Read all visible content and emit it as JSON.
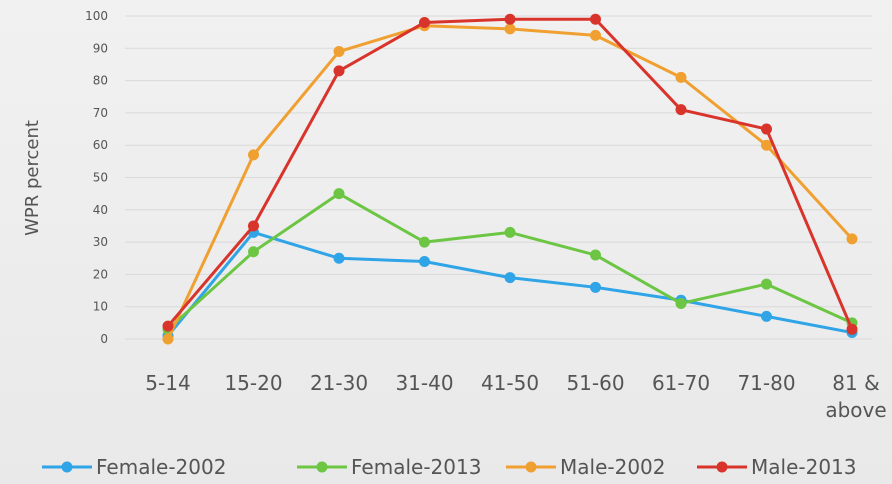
{
  "chart_data": {
    "type": "line",
    "title": "",
    "xlabel": "",
    "ylabel": "WPR percent",
    "ylim": [
      0,
      100
    ],
    "yticks": [
      0,
      10,
      20,
      30,
      40,
      50,
      60,
      70,
      80,
      90,
      100
    ],
    "categories": [
      "5-14",
      "15-20",
      "21-30",
      "31-40",
      "41-50",
      "51-60",
      "61-70",
      "71-80",
      "81 & above"
    ],
    "grid": true,
    "legend_position": "bottom",
    "series": [
      {
        "name": "Female-2002",
        "color": "#2fa4e7",
        "values": [
          1,
          33,
          25,
          24,
          19,
          16,
          12,
          7,
          2
        ]
      },
      {
        "name": "Female-2013",
        "color": "#6cc644",
        "values": [
          3,
          27,
          45,
          30,
          33,
          26,
          11,
          17,
          5
        ]
      },
      {
        "name": "Male-2002",
        "color": "#f0a030",
        "values": [
          0,
          57,
          89,
          97,
          96,
          94,
          81,
          60,
          31
        ]
      },
      {
        "name": "Male-2013",
        "color": "#d9342b",
        "values": [
          4,
          35,
          83,
          98,
          99,
          99,
          71,
          65,
          3
        ]
      }
    ]
  }
}
